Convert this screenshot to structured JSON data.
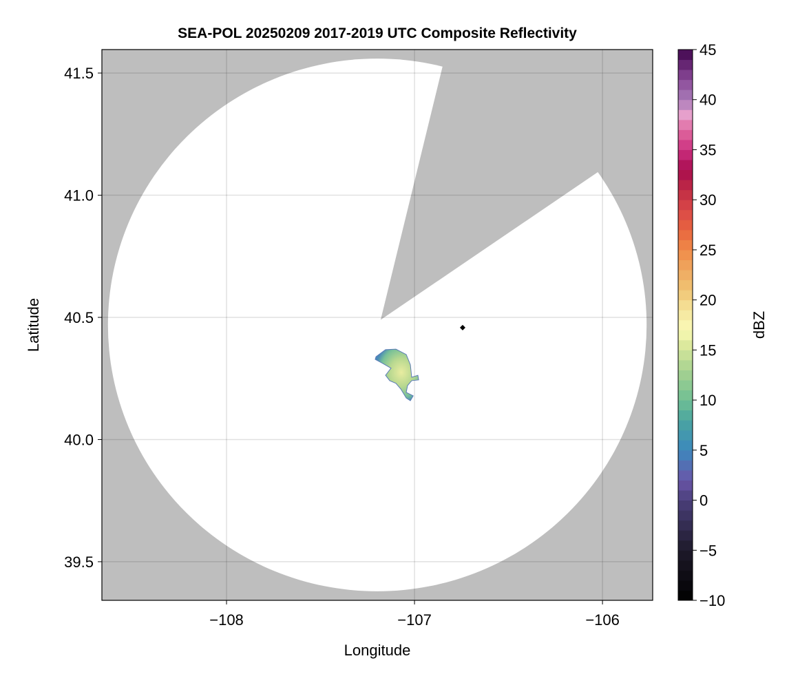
{
  "chart_data": {
    "type": "heatmap",
    "title": "SEA-POL 20250209 2017-2019 UTC Composite Reflectivity",
    "xlabel": "Longitude",
    "ylabel": "Latitude",
    "xlim": [
      -108.663,
      -105.733
    ],
    "ylim": [
      39.342,
      41.596
    ],
    "xticks": [
      -108,
      -107,
      -106
    ],
    "xtick_labels": [
      "−108",
      "−107",
      "−106"
    ],
    "yticks": [
      39.5,
      40.0,
      40.5,
      41.0,
      41.5
    ],
    "ytick_labels": [
      "39.5",
      "40.0",
      "40.5",
      "41.0",
      "41.5"
    ],
    "grid": true,
    "background_color": "#bebebe",
    "radar": {
      "lon": -107.198,
      "lat": 40.469,
      "range_deg_lat": 1.09,
      "blocked_sector_azimuth_deg": [
        14,
        55
      ],
      "blocked_sector_apex": [
        -107.18,
        40.49
      ]
    },
    "marker": {
      "lon": -106.744,
      "lat": 40.458,
      "shape": "diamond",
      "color": "#000000"
    },
    "echo": {
      "outline": [
        [
          -107.205,
          40.339
        ],
        [
          -107.154,
          40.368
        ],
        [
          -107.099,
          40.37
        ],
        [
          -107.044,
          40.348
        ],
        [
          -107.022,
          40.306
        ],
        [
          -107.015,
          40.255
        ],
        [
          -106.982,
          40.263
        ],
        [
          -106.978,
          40.244
        ],
        [
          -107.015,
          40.241
        ],
        [
          -107.037,
          40.221
        ],
        [
          -107.044,
          40.193
        ],
        [
          -107.007,
          40.179
        ],
        [
          -107.022,
          40.159
        ],
        [
          -107.044,
          40.17
        ],
        [
          -107.073,
          40.207
        ],
        [
          -107.099,
          40.23
        ],
        [
          -107.132,
          40.241
        ],
        [
          -107.154,
          40.263
        ],
        [
          -107.125,
          40.292
        ],
        [
          -107.168,
          40.311
        ],
        [
          -107.209,
          40.328
        ]
      ],
      "min_dbz": 5,
      "max_dbz": 22
    },
    "colorbar": {
      "label": "dBZ",
      "range": [
        -10,
        45
      ],
      "step": 1,
      "ticks": [
        -10,
        -5,
        0,
        5,
        10,
        15,
        20,
        25,
        30,
        35,
        40,
        45
      ],
      "tick_labels": [
        "−10",
        "−5",
        "0",
        "5",
        "10",
        "15",
        "20",
        "25",
        "30",
        "35",
        "40",
        "45"
      ],
      "stops": [
        [
          -10,
          "#000000"
        ],
        [
          -5,
          "#1e1a2a"
        ],
        [
          0,
          "#4a3f7a"
        ],
        [
          2,
          "#6a55a8"
        ],
        [
          5,
          "#3c88bd"
        ],
        [
          8,
          "#4aa5a0"
        ],
        [
          10,
          "#70bf94"
        ],
        [
          13,
          "#a8d290"
        ],
        [
          16,
          "#e6eda0"
        ],
        [
          17,
          "#fafab8"
        ],
        [
          19,
          "#f5e59c"
        ],
        [
          21,
          "#f0c472"
        ],
        [
          23,
          "#eea860"
        ],
        [
          25,
          "#f08a48"
        ],
        [
          27,
          "#e8643f"
        ],
        [
          29,
          "#d94848"
        ],
        [
          31,
          "#c02c44"
        ],
        [
          33,
          "#a80c4e"
        ],
        [
          35,
          "#cc3080"
        ],
        [
          37,
          "#e06aa0"
        ],
        [
          38.5,
          "#e6a0cc"
        ],
        [
          40,
          "#a87bb8"
        ],
        [
          42,
          "#8a4a98"
        ],
        [
          44,
          "#5a1a66"
        ],
        [
          45,
          "#40084e"
        ]
      ]
    }
  }
}
